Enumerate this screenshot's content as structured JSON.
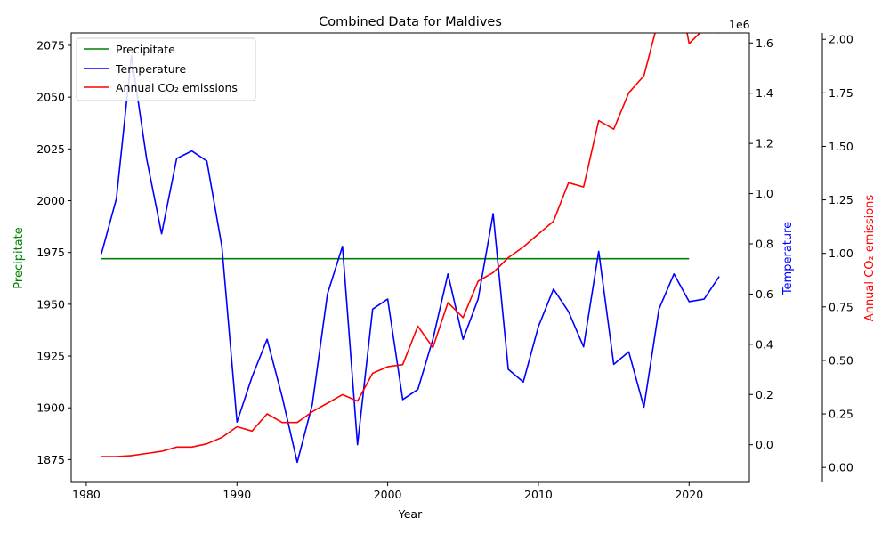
{
  "chart_data": {
    "type": "line",
    "title": "Combined Data for Maldives",
    "xlabel": "Year",
    "x_ticks": [
      1980,
      1990,
      2000,
      2010,
      2020
    ],
    "xlim": [
      1979,
      2024
    ],
    "axes": {
      "left": {
        "label": "Precipitate",
        "color": "#008000",
        "ylim": [
          1864,
          2081
        ],
        "ticks": [
          1875,
          1900,
          1925,
          1950,
          1975,
          2000,
          2025,
          2050,
          2075
        ]
      },
      "right1": {
        "label": "Temperature",
        "color": "#0000ff",
        "ylim": [
          -0.15,
          1.64
        ],
        "ticks": [
          0.0,
          0.2,
          0.4,
          0.6,
          0.8,
          1.0,
          1.2,
          1.4,
          1.6
        ],
        "tick_labels": [
          "0.0",
          "0.2",
          "0.4",
          "0.6",
          "0.8",
          "1.0",
          "1.2",
          "1.4",
          "1.6"
        ],
        "offset_text": "1e6"
      },
      "right2": {
        "label": "Annual CO₂ emissions",
        "color": "#ff0000",
        "ylim": [
          -0.07,
          2.03
        ],
        "ticks": [
          0.0,
          0.25,
          0.5,
          0.75,
          1.0,
          1.25,
          1.5,
          1.75,
          2.0
        ],
        "tick_labels": [
          "0.00",
          "0.25",
          "0.50",
          "0.75",
          "1.00",
          "1.25",
          "1.50",
          "1.75",
          "2.00"
        ]
      }
    },
    "legend": {
      "position": "top-left",
      "entries": [
        "Precipitate",
        "Temperature",
        "Annual CO₂ emissions"
      ]
    },
    "series": [
      {
        "name": "Precipitate",
        "axis": "left",
        "color": "#008000",
        "x": [
          1981,
          2020
        ],
        "values": [
          1972,
          1972
        ]
      },
      {
        "name": "Temperature",
        "axis": "right1",
        "color": "#0000ff",
        "x": [
          1981,
          1982,
          1983,
          1984,
          1985,
          1986,
          1987,
          1988,
          1989,
          1990,
          1991,
          1992,
          1993,
          1994,
          1995,
          1996,
          1997,
          1998,
          1999,
          2000,
          2001,
          2002,
          2003,
          2004,
          2005,
          2006,
          2007,
          2008,
          2009,
          2010,
          2011,
          2012,
          2013,
          2014,
          2015,
          2016,
          2017,
          2018,
          2019,
          2020,
          2021,
          2022
        ],
        "values": [
          0.76,
          0.98,
          1.55,
          1.14,
          0.84,
          1.14,
          1.17,
          1.13,
          0.79,
          0.09,
          0.27,
          0.42,
          0.19,
          -0.07,
          0.16,
          0.6,
          0.79,
          0.0,
          0.54,
          0.58,
          0.18,
          0.22,
          0.42,
          0.68,
          0.42,
          0.58,
          0.92,
          0.3,
          0.25,
          0.47,
          0.62,
          0.53,
          0.39,
          0.77,
          0.32,
          0.37,
          0.15,
          0.54,
          0.68,
          0.57,
          0.58,
          0.67
        ]
      },
      {
        "name": "Annual CO₂ emissions",
        "axis": "right2",
        "color": "#ff0000",
        "x": [
          1981,
          1982,
          1983,
          1984,
          1985,
          1986,
          1987,
          1988,
          1989,
          1990,
          1991,
          1992,
          1993,
          1994,
          1995,
          1996,
          1997,
          1998,
          1999,
          2000,
          2001,
          2002,
          2003,
          2004,
          2005,
          2006,
          2007,
          2008,
          2009,
          2010,
          2011,
          2012,
          2013,
          2014,
          2015,
          2016,
          2017,
          2018,
          2019,
          2020,
          2021,
          2022
        ],
        "values": [
          0.05,
          0.05,
          0.055,
          0.065,
          0.075,
          0.095,
          0.095,
          0.11,
          0.14,
          0.19,
          0.17,
          0.25,
          0.21,
          0.21,
          0.26,
          0.3,
          0.34,
          0.31,
          0.44,
          0.47,
          0.48,
          0.66,
          0.56,
          0.77,
          0.7,
          0.87,
          0.91,
          0.98,
          1.03,
          1.09,
          1.15,
          1.33,
          1.31,
          1.62,
          1.58,
          1.75,
          1.83,
          2.1,
          2.35,
          1.98,
          2.05,
          2.03
        ]
      }
    ]
  }
}
